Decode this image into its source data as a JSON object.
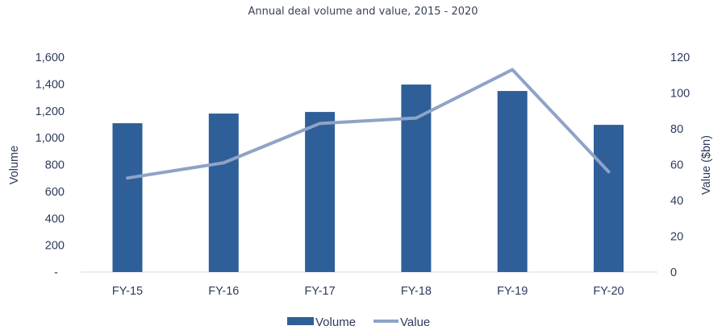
{
  "chart_data": {
    "type": "bar",
    "title": "Annual deal volume and value, 2015 - 2020",
    "categories": [
      "FY-15",
      "FY-16",
      "FY-17",
      "FY-18",
      "FY-19",
      "FY-20"
    ],
    "series": [
      {
        "name": "Volume",
        "type": "bar",
        "axis": "left",
        "color": "#2f5f98",
        "values": [
          1108,
          1180,
          1192,
          1396,
          1348,
          1096
        ]
      },
      {
        "name": "Value",
        "type": "line",
        "axis": "right",
        "color": "#8ea3c6",
        "values": [
          52.5,
          61,
          83,
          86,
          113,
          56
        ]
      }
    ],
    "ylabel": "Volume",
    "y2label": "Value ($bn)",
    "ylim": [
      0,
      1600
    ],
    "y2lim": [
      0,
      120
    ],
    "yticks": [
      "-",
      "200",
      "400",
      "600",
      "800",
      "1,000",
      "1,200",
      "1,400",
      "1,600"
    ],
    "y2ticks": [
      "0",
      "20",
      "40",
      "60",
      "80",
      "100",
      "120"
    ],
    "grid": false,
    "legend": {
      "position": "bottom",
      "entries": [
        "Volume",
        "Value"
      ]
    }
  }
}
